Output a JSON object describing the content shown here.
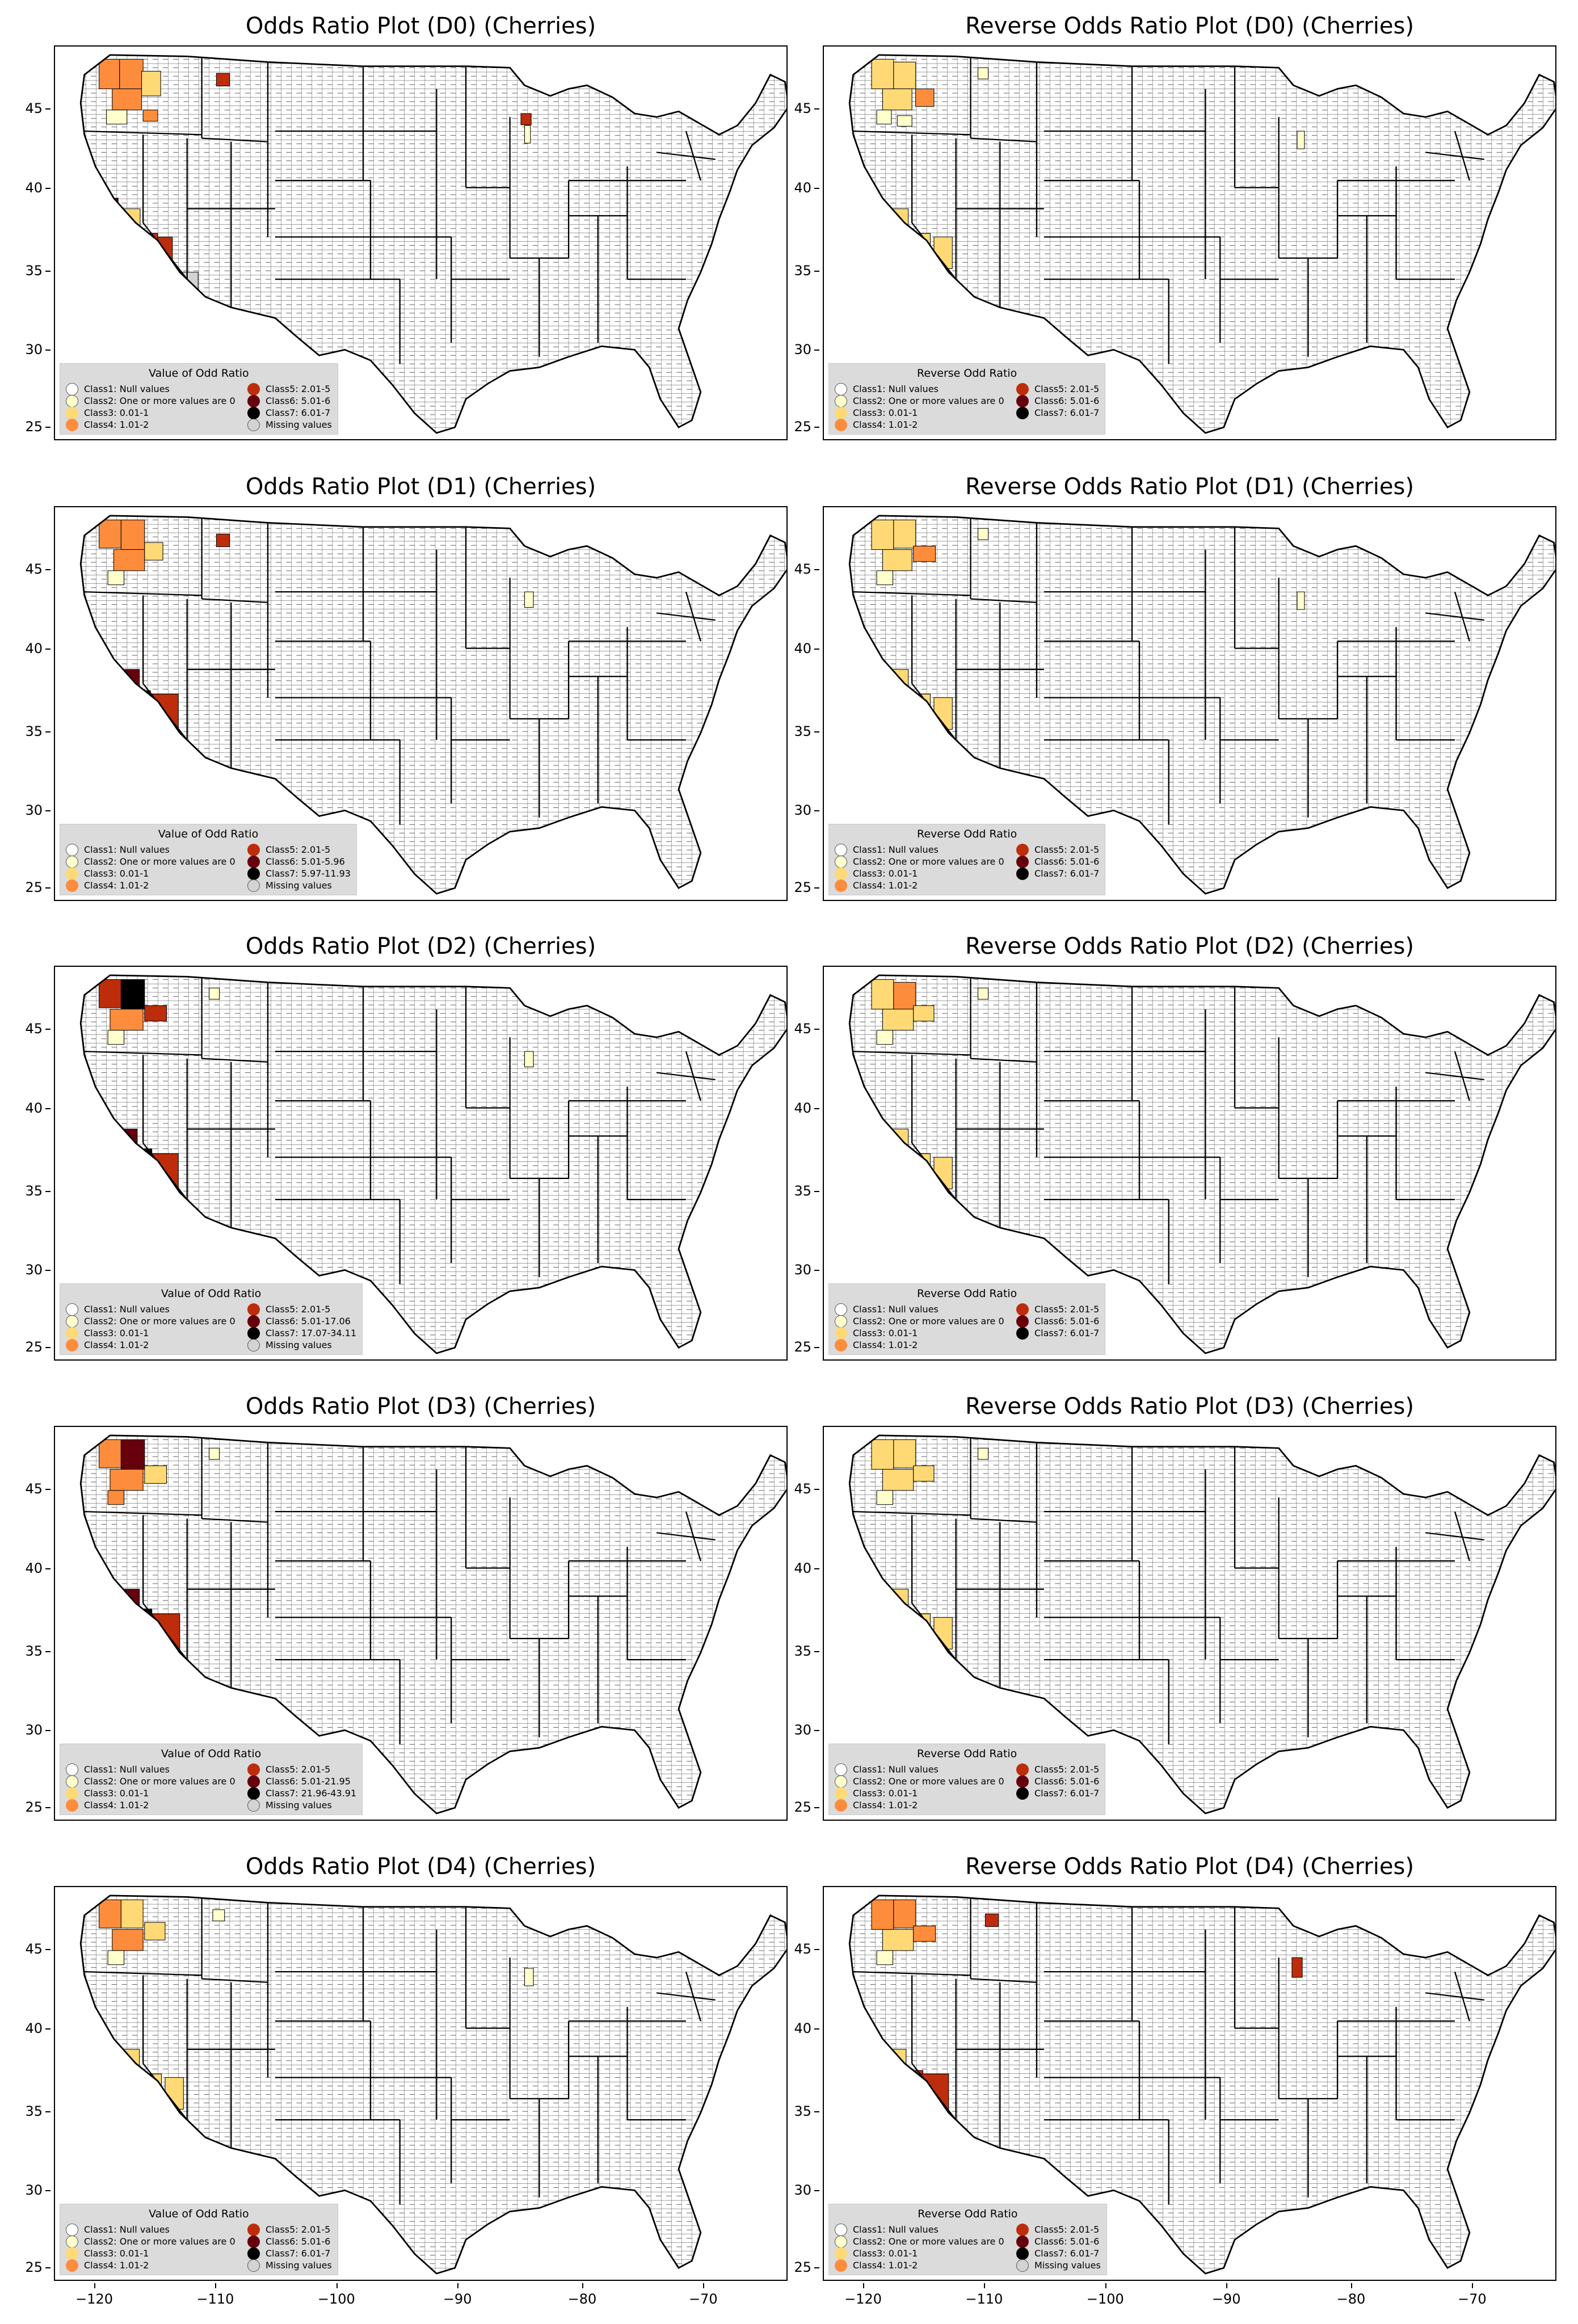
{
  "colors": {
    "class1": "#ffffff",
    "class2": "#ffffcc",
    "class3": "#fed976",
    "class4": "#fd8d3c",
    "class5": "#bd2d0b",
    "class6": "#67000d",
    "class7": "#000000",
    "missing": "#d3d3d3"
  },
  "y_ticks": [
    "45",
    "40",
    "35",
    "30",
    "25"
  ],
  "x_ticks": [
    "−120",
    "−110",
    "−100",
    "−90",
    "−80",
    "−70"
  ],
  "panels": [
    {
      "title": "Odds Ratio Plot (D0) (Cherries)",
      "legend_title": "Value of Odd Ratio",
      "legend_left": [
        "Class1: Null values",
        "Class2: One or more values are 0",
        "Class3: 0.01-1",
        "Class4: 1.01-2"
      ],
      "legend_right": [
        "Class5: 2.01-5",
        "Class6: 5.01-6",
        "Class7: 6.01-7",
        "Missing values"
      ],
      "legend_left_swatches": [
        "class1",
        "class2",
        "class3",
        "class4"
      ],
      "legend_right_swatches": [
        "class5",
        "class6",
        "class7",
        "missing"
      ]
    },
    {
      "title": "Reverse Odds Ratio Plot (D0) (Cherries)",
      "legend_title": "Reverse Odd Ratio",
      "legend_left": [
        "Class1: Null values",
        "Class2: One or more values are 0",
        "Class3: 0.01-1",
        "Class4: 1.01-2"
      ],
      "legend_right": [
        "Class5: 2.01-5",
        "Class6: 5.01-6",
        "Class7: 6.01-7"
      ],
      "legend_left_swatches": [
        "class1",
        "class2",
        "class3",
        "class4"
      ],
      "legend_right_swatches": [
        "class5",
        "class6",
        "class7"
      ]
    },
    {
      "title": "Odds Ratio Plot (D1) (Cherries)",
      "legend_title": "Value of Odd Ratio",
      "legend_left": [
        "Class1: Null values",
        "Class2: One or more values are 0",
        "Class3: 0.01-1",
        "Class4: 1.01-2"
      ],
      "legend_right": [
        "Class5: 2.01-5",
        "Class6: 5.01-5.96",
        "Class7: 5.97-11.93",
        "Missing values"
      ],
      "legend_left_swatches": [
        "class1",
        "class2",
        "class3",
        "class4"
      ],
      "legend_right_swatches": [
        "class5",
        "class6",
        "class7",
        "missing"
      ]
    },
    {
      "title": "Reverse Odds Ratio Plot (D1) (Cherries)",
      "legend_title": "Reverse Odd Ratio",
      "legend_left": [
        "Class1: Null values",
        "Class2: One or more values are 0",
        "Class3: 0.01-1",
        "Class4: 1.01-2"
      ],
      "legend_right": [
        "Class5: 2.01-5",
        "Class6: 5.01-6",
        "Class7: 6.01-7"
      ],
      "legend_left_swatches": [
        "class1",
        "class2",
        "class3",
        "class4"
      ],
      "legend_right_swatches": [
        "class5",
        "class6",
        "class7"
      ]
    },
    {
      "title": "Odds Ratio Plot (D2) (Cherries)",
      "legend_title": "Value of Odd Ratio",
      "legend_left": [
        "Class1: Null values",
        "Class2: One or more values are 0",
        "Class3: 0.01-1",
        "Class4: 1.01-2"
      ],
      "legend_right": [
        "Class5: 2.01-5",
        "Class6: 5.01-17.06",
        "Class7: 17.07-34.11",
        "Missing values"
      ],
      "legend_left_swatches": [
        "class1",
        "class2",
        "class3",
        "class4"
      ],
      "legend_right_swatches": [
        "class5",
        "class6",
        "class7",
        "missing"
      ]
    },
    {
      "title": "Reverse Odds Ratio Plot (D2) (Cherries)",
      "legend_title": "Reverse Odd Ratio",
      "legend_left": [
        "Class1: Null values",
        "Class2: One or more values are 0",
        "Class3: 0.01-1",
        "Class4: 1.01-2"
      ],
      "legend_right": [
        "Class5: 2.01-5",
        "Class6: 5.01-6",
        "Class7: 6.01-7"
      ],
      "legend_left_swatches": [
        "class1",
        "class2",
        "class3",
        "class4"
      ],
      "legend_right_swatches": [
        "class5",
        "class6",
        "class7"
      ]
    },
    {
      "title": "Odds Ratio Plot (D3) (Cherries)",
      "legend_title": "Value of Odd Ratio",
      "legend_left": [
        "Class1: Null values",
        "Class2: One or more values are 0",
        "Class3: 0.01-1",
        "Class4: 1.01-2"
      ],
      "legend_right": [
        "Class5: 2.01-5",
        "Class6: 5.01-21.95",
        "Class7: 21.96-43.91",
        "Missing values"
      ],
      "legend_left_swatches": [
        "class1",
        "class2",
        "class3",
        "class4"
      ],
      "legend_right_swatches": [
        "class5",
        "class6",
        "class7",
        "missing"
      ]
    },
    {
      "title": "Reverse Odds Ratio Plot (D3) (Cherries)",
      "legend_title": "Reverse Odd Ratio",
      "legend_left": [
        "Class1: Null values",
        "Class2: One or more values are 0",
        "Class3: 0.01-1",
        "Class4: 1.01-2"
      ],
      "legend_right": [
        "Class5: 2.01-5",
        "Class6: 5.01-6",
        "Class7: 6.01-7"
      ],
      "legend_left_swatches": [
        "class1",
        "class2",
        "class3",
        "class4"
      ],
      "legend_right_swatches": [
        "class5",
        "class6",
        "class7"
      ]
    },
    {
      "title": "Odds Ratio Plot (D4) (Cherries)",
      "legend_title": "Value of Odd Ratio",
      "legend_left": [
        "Class1: Null values",
        "Class2: One or more values are 0",
        "Class3: 0.01-1",
        "Class4: 1.01-2"
      ],
      "legend_right": [
        "Class5: 2.01-5",
        "Class6: 5.01-6",
        "Class7: 6.01-7",
        "Missing values"
      ],
      "legend_left_swatches": [
        "class1",
        "class2",
        "class3",
        "class4"
      ],
      "legend_right_swatches": [
        "class5",
        "class6",
        "class7",
        "missing"
      ]
    },
    {
      "title": "Reverse Odds Ratio Plot (D4) (Cherries)",
      "legend_title": "Reverse Odd Ratio",
      "legend_left": [
        "Class1: Null values",
        "Class2: One or more values are 0",
        "Class3: 0.01-1",
        "Class4: 1.01-2"
      ],
      "legend_right": [
        "Class5: 2.01-5",
        "Class6: 5.01-6",
        "Class7: 6.01-7",
        "Missing values"
      ],
      "legend_left_swatches": [
        "class1",
        "class2",
        "class3",
        "class4"
      ],
      "legend_right_swatches": [
        "class5",
        "class6",
        "class7",
        "missing"
      ]
    }
  ]
}
